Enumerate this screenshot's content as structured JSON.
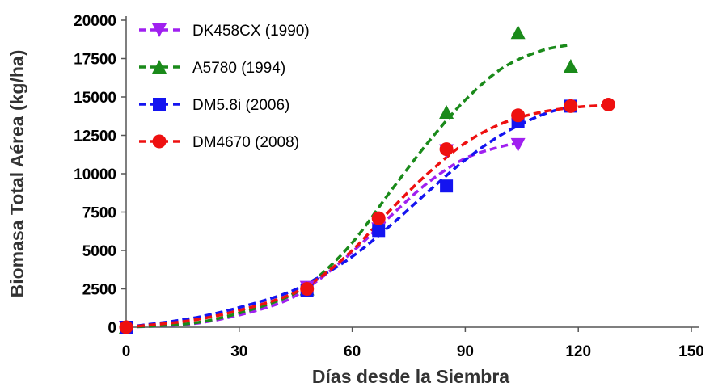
{
  "chart_data": {
    "type": "scatter",
    "xlabel": "Días desde la Siembra",
    "ylabel": "Biomasa Total Aérea (kg/ha)",
    "xlim": [
      0,
      150
    ],
    "ylim": [
      0,
      20000
    ],
    "xticks": [
      "0",
      "30",
      "60",
      "90",
      "120",
      "150"
    ],
    "yticks": [
      "0",
      "2500",
      "5000",
      "7500",
      "10000",
      "12500",
      "15000",
      "17500",
      "20000"
    ],
    "grid": false,
    "legend_position": "top-left",
    "series": [
      {
        "name": "DK458CX (1990)",
        "color": "#a020f0",
        "marker": "triangle-down",
        "points": [
          [
            0,
            0
          ],
          [
            48,
            2600
          ],
          [
            67,
            6400
          ],
          [
            85,
            11500
          ],
          [
            104,
            11900
          ]
        ],
        "fit": [
          [
            0,
            0
          ],
          [
            20,
            300
          ],
          [
            40,
            1500
          ],
          [
            50,
            2900
          ],
          [
            60,
            4900
          ],
          [
            70,
            7200
          ],
          [
            80,
            9400
          ],
          [
            90,
            11000
          ],
          [
            100,
            11800
          ],
          [
            104,
            11950
          ]
        ]
      },
      {
        "name": "A5780 (1994)",
        "color": "#1a8a1a",
        "marker": "triangle-up",
        "points": [
          [
            0,
            0
          ],
          [
            48,
            2500
          ],
          [
            67,
            6800
          ],
          [
            85,
            14000
          ],
          [
            104,
            19200
          ],
          [
            118,
            17000
          ]
        ],
        "fit": [
          [
            0,
            0
          ],
          [
            20,
            350
          ],
          [
            40,
            1700
          ],
          [
            50,
            3100
          ],
          [
            60,
            5500
          ],
          [
            70,
            8800
          ],
          [
            80,
            12000
          ],
          [
            90,
            14800
          ],
          [
            100,
            16900
          ],
          [
            110,
            18000
          ],
          [
            118,
            18400
          ]
        ]
      },
      {
        "name": "DM5.8i (2006)",
        "color": "#1414f0",
        "marker": "square",
        "points": [
          [
            0,
            0
          ],
          [
            48,
            2400
          ],
          [
            67,
            6300
          ],
          [
            85,
            9200
          ],
          [
            104,
            13400
          ],
          [
            118,
            14400
          ]
        ],
        "fit": [
          [
            0,
            0
          ],
          [
            20,
            700
          ],
          [
            40,
            2000
          ],
          [
            50,
            3100
          ],
          [
            60,
            4600
          ],
          [
            70,
            6600
          ],
          [
            80,
            8800
          ],
          [
            90,
            10900
          ],
          [
            100,
            12600
          ],
          [
            110,
            13800
          ],
          [
            118,
            14400
          ]
        ]
      },
      {
        "name": "DM4670 (2008)",
        "color": "#ee1010",
        "marker": "circle",
        "points": [
          [
            0,
            0
          ],
          [
            48,
            2500
          ],
          [
            67,
            7100
          ],
          [
            85,
            11600
          ],
          [
            104,
            13800
          ],
          [
            118,
            14400
          ],
          [
            128,
            14500
          ]
        ],
        "fit": [
          [
            0,
            0
          ],
          [
            20,
            550
          ],
          [
            40,
            1800
          ],
          [
            50,
            3000
          ],
          [
            60,
            5000
          ],
          [
            70,
            7600
          ],
          [
            80,
            10000
          ],
          [
            90,
            12000
          ],
          [
            100,
            13300
          ],
          [
            110,
            14000
          ],
          [
            120,
            14350
          ],
          [
            128,
            14450
          ]
        ]
      }
    ]
  }
}
